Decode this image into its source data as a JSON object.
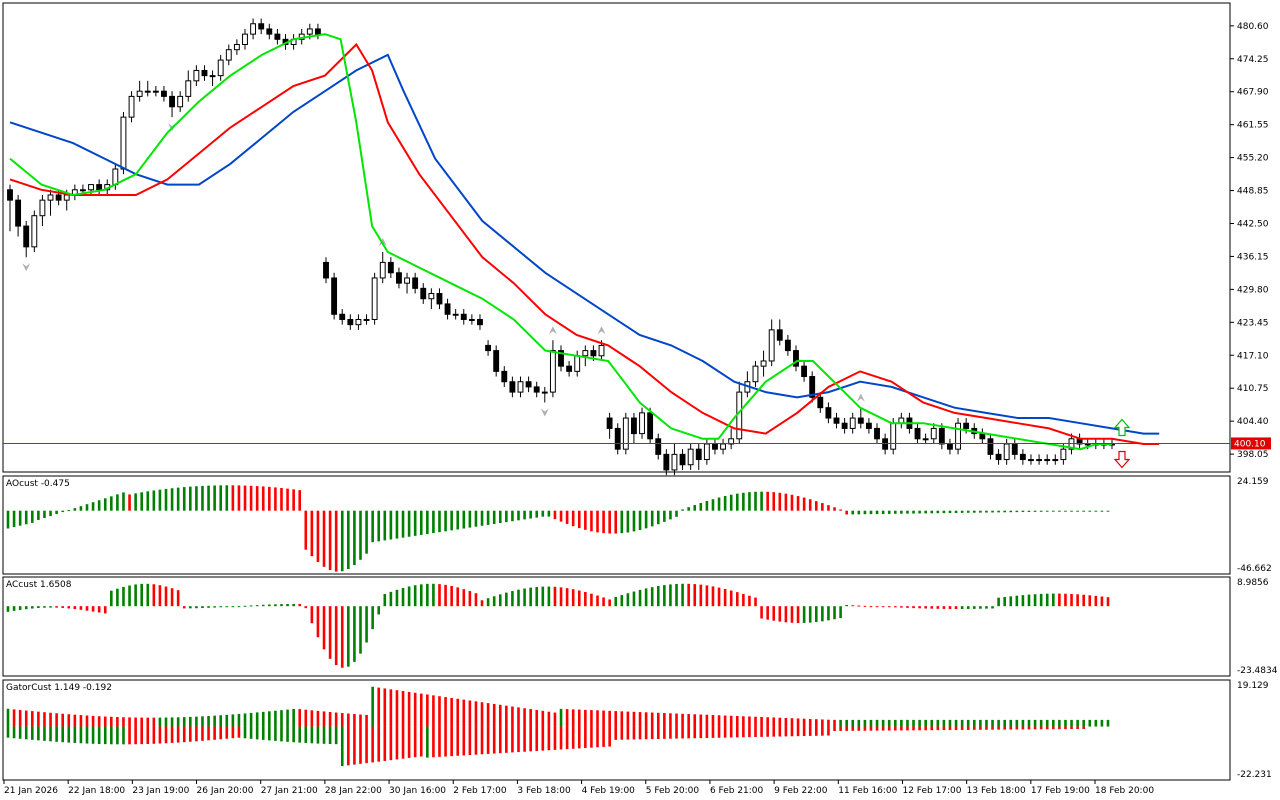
{
  "window": {
    "title": ""
  },
  "colors": {
    "background": "#ffffff",
    "axis": "#000000",
    "candle_up_fill": "#ffffff",
    "candle_down_fill": "#000000",
    "lips": "#00e600",
    "teeth": "#ff0000",
    "jaw": "#0046c8",
    "price_line": "#b22222",
    "price_label_bg": "#e00000",
    "hist_up": "#008000",
    "hist_down": "#ff0000",
    "fractal": "#b0b0b0",
    "arrow_up": "#00c000",
    "arrow_down": "#e00000"
  },
  "time_axis": {
    "labels": [
      "21 Jan 2026",
      "22 Jan 18:00",
      "23 Jan 19:00",
      "26 Jan 20:00",
      "27 Jan 21:00",
      "28 Jan 22:00",
      "30 Jan 16:00",
      "2 Feb 17:00",
      "3 Feb 18:00",
      "4 Feb 19:00",
      "5 Feb 20:00",
      "6 Feb 21:00",
      "9 Feb 22:00",
      "11 Feb 16:00",
      "12 Feb 17:00",
      "13 Feb 18:00",
      "17 Feb 19:00",
      "18 Feb 20:00"
    ]
  },
  "chart_data": [
    {
      "type": "candlestick",
      "title": "",
      "price_axis_ticks": [
        "480.60",
        "474.25",
        "467.90",
        "461.55",
        "455.20",
        "448.85",
        "442.50",
        "436.15",
        "429.80",
        "423.45",
        "417.10",
        "410.75",
        "404.40",
        "398.05"
      ],
      "ylim": [
        394.6,
        485.0
      ],
      "current_price": 400.1,
      "current_price_label": "400.10",
      "candles": [
        [
          449,
          450,
          441,
          447
        ],
        [
          447,
          448,
          440,
          442
        ],
        [
          442,
          443,
          436,
          438
        ],
        [
          438,
          445,
          437,
          444
        ],
        [
          444,
          448,
          442,
          447
        ],
        [
          447,
          449,
          444,
          448
        ],
        [
          448,
          449,
          446,
          447
        ],
        [
          447,
          449,
          445,
          448
        ],
        [
          448,
          450,
          447,
          449
        ],
        [
          449,
          450,
          448,
          449
        ],
        [
          449,
          450,
          448,
          450
        ],
        [
          450,
          451,
          448,
          449
        ],
        [
          449,
          451,
          448,
          450
        ],
        [
          450,
          454,
          449,
          453
        ],
        [
          453,
          464,
          452,
          463
        ],
        [
          463,
          468,
          462,
          467
        ],
        [
          467,
          470,
          466,
          468
        ],
        [
          468,
          470,
          467,
          468
        ],
        [
          468,
          469,
          467,
          468
        ],
        [
          468,
          469,
          466,
          467
        ],
        [
          467,
          468,
          463,
          465
        ],
        [
          465,
          468,
          464,
          467
        ],
        [
          467,
          472,
          466,
          470
        ],
        [
          470,
          473,
          469,
          472
        ],
        [
          472,
          473,
          470,
          471
        ],
        [
          471,
          472,
          469,
          471
        ],
        [
          471,
          475,
          470,
          474
        ],
        [
          474,
          477,
          473,
          476
        ],
        [
          476,
          478,
          475,
          477
        ],
        [
          477,
          480,
          476,
          479
        ],
        [
          479,
          482,
          478,
          481
        ],
        [
          481,
          482,
          479,
          480
        ],
        [
          480,
          481,
          478,
          479
        ],
        [
          479,
          480,
          477,
          478
        ],
        [
          478,
          479,
          476,
          477
        ],
        [
          477,
          479,
          476,
          478
        ],
        [
          478,
          480,
          477,
          479
        ],
        [
          479,
          481,
          478,
          480
        ],
        [
          480,
          481,
          478,
          479
        ],
        [
          435,
          436,
          431,
          432
        ],
        [
          432,
          433,
          424,
          425
        ],
        [
          425,
          426,
          423,
          424
        ],
        [
          424,
          425,
          422,
          423
        ],
        [
          423,
          425,
          422,
          424
        ],
        [
          424,
          425,
          423,
          424
        ],
        [
          424,
          433,
          423,
          432
        ],
        [
          432,
          437,
          431,
          435
        ],
        [
          435,
          436,
          432,
          433
        ],
        [
          433,
          434,
          430,
          431
        ],
        [
          431,
          433,
          429,
          432
        ],
        [
          432,
          433,
          429,
          430
        ],
        [
          430,
          431,
          427,
          428
        ],
        [
          428,
          430,
          426,
          429
        ],
        [
          429,
          430,
          426,
          427
        ],
        [
          427,
          428,
          424,
          425
        ],
        [
          425,
          426,
          424,
          425
        ],
        [
          425,
          426,
          423,
          424
        ],
        [
          424,
          425,
          423,
          424
        ],
        [
          424,
          425,
          422,
          423
        ],
        [
          419,
          420,
          417,
          418
        ],
        [
          418,
          419,
          413,
          414
        ],
        [
          414,
          415,
          411,
          412
        ],
        [
          412,
          413,
          409,
          410
        ],
        [
          410,
          413,
          409,
          412
        ],
        [
          412,
          413,
          410,
          411
        ],
        [
          411,
          412,
          409,
          410
        ],
        [
          410,
          411,
          408,
          410
        ],
        [
          410,
          420,
          409,
          418
        ],
        [
          418,
          419,
          414,
          415
        ],
        [
          415,
          416,
          413,
          414
        ],
        [
          414,
          418,
          413,
          417
        ],
        [
          417,
          419,
          415,
          418
        ],
        [
          418,
          419,
          416,
          417
        ],
        [
          417,
          420,
          416,
          419
        ],
        [
          405,
          406,
          401,
          403
        ],
        [
          403,
          404,
          398,
          399
        ],
        [
          399,
          406,
          398,
          405
        ],
        [
          405,
          406,
          400,
          402
        ],
        [
          402,
          407,
          401,
          406
        ],
        [
          406,
          407,
          400,
          401
        ],
        [
          401,
          402,
          397,
          398
        ],
        [
          398,
          399,
          394,
          395
        ],
        [
          395,
          400,
          394,
          398
        ],
        [
          398,
          399,
          395,
          396
        ],
        [
          396,
          400,
          395,
          399
        ],
        [
          399,
          400,
          395,
          397
        ],
        [
          397,
          401,
          396,
          400
        ],
        [
          400,
          401,
          398,
          399
        ],
        [
          399,
          401,
          398,
          400
        ],
        [
          400,
          403,
          399,
          401
        ],
        [
          401,
          412,
          400,
          410
        ],
        [
          410,
          414,
          409,
          412
        ],
        [
          412,
          416,
          411,
          415
        ],
        [
          415,
          418,
          413,
          416
        ],
        [
          416,
          424,
          415,
          422
        ],
        [
          422,
          424,
          419,
          420
        ],
        [
          420,
          421,
          417,
          418
        ],
        [
          418,
          419,
          414,
          415
        ],
        [
          415,
          416,
          412,
          413
        ],
        [
          413,
          414,
          408,
          409
        ],
        [
          409,
          410,
          406,
          407
        ],
        [
          407,
          408,
          404,
          405
        ],
        [
          405,
          406,
          403,
          404
        ],
        [
          404,
          405,
          402,
          403
        ],
        [
          403,
          406,
          402,
          405
        ],
        [
          405,
          407,
          403,
          404
        ],
        [
          404,
          405,
          402,
          403
        ],
        [
          403,
          404,
          400,
          401
        ],
        [
          401,
          402,
          398,
          399
        ],
        [
          399,
          405,
          398,
          404
        ],
        [
          404,
          406,
          403,
          405
        ],
        [
          405,
          406,
          402,
          403
        ],
        [
          403,
          404,
          400,
          401
        ],
        [
          401,
          402,
          400,
          401
        ],
        [
          401,
          404,
          400,
          403
        ],
        [
          403,
          404,
          399,
          400
        ],
        [
          400,
          401,
          398,
          399
        ],
        [
          399,
          405,
          398,
          404
        ],
        [
          404,
          405,
          402,
          403
        ],
        [
          403,
          404,
          401,
          402
        ],
        [
          402,
          403,
          400,
          401
        ],
        [
          401,
          402,
          397,
          398
        ],
        [
          398,
          399,
          396,
          397
        ],
        [
          397,
          401,
          396,
          400
        ],
        [
          400,
          401,
          397,
          398
        ],
        [
          398,
          399,
          396,
          397
        ],
        [
          397,
          398,
          396,
          397
        ],
        [
          397,
          398,
          396,
          397
        ],
        [
          397,
          398,
          396,
          397
        ],
        [
          397,
          398,
          396,
          397
        ],
        [
          397,
          400,
          396,
          399
        ],
        [
          399,
          402,
          398,
          401
        ],
        [
          401,
          402,
          399,
          400
        ],
        [
          400,
          401,
          399,
          400
        ],
        [
          400,
          401,
          399,
          400
        ],
        [
          400,
          401,
          399,
          400
        ],
        [
          400,
          401,
          399,
          400
        ]
      ],
      "alligator": {
        "lips_name": "Lips",
        "teeth_name": "Teeth",
        "jaw_name": "Jaw",
        "lips": [
          [
            0,
            455
          ],
          [
            10,
            450
          ],
          [
            20,
            448
          ],
          [
            30,
            449
          ],
          [
            40,
            452
          ],
          [
            50,
            460
          ],
          [
            60,
            466
          ],
          [
            70,
            471
          ],
          [
            80,
            475
          ],
          [
            90,
            478
          ],
          [
            100,
            479
          ],
          [
            105,
            478
          ],
          [
            110,
            462
          ],
          [
            115,
            442
          ],
          [
            120,
            437
          ],
          [
            130,
            434
          ],
          [
            140,
            431
          ],
          [
            150,
            428
          ],
          [
            160,
            424
          ],
          [
            170,
            418
          ],
          [
            180,
            417
          ],
          [
            190,
            416
          ],
          [
            195,
            412
          ],
          [
            200,
            408
          ],
          [
            210,
            403
          ],
          [
            220,
            401
          ],
          [
            225,
            401
          ],
          [
            230,
            405
          ],
          [
            240,
            412
          ],
          [
            250,
            416
          ],
          [
            255,
            416
          ],
          [
            260,
            413
          ],
          [
            270,
            407
          ],
          [
            280,
            404
          ],
          [
            290,
            404
          ],
          [
            300,
            403
          ],
          [
            310,
            402
          ],
          [
            320,
            401
          ],
          [
            330,
            400
          ],
          [
            340,
            399
          ],
          [
            345,
            400
          ],
          [
            350,
            400
          ]
        ],
        "teeth": [
          [
            0,
            451
          ],
          [
            10,
            449
          ],
          [
            20,
            448
          ],
          [
            30,
            448
          ],
          [
            40,
            448
          ],
          [
            50,
            451
          ],
          [
            60,
            456
          ],
          [
            70,
            461
          ],
          [
            80,
            465
          ],
          [
            90,
            469
          ],
          [
            100,
            471
          ],
          [
            110,
            477
          ],
          [
            115,
            472
          ],
          [
            120,
            462
          ],
          [
            130,
            452
          ],
          [
            140,
            444
          ],
          [
            150,
            436
          ],
          [
            160,
            431
          ],
          [
            170,
            425
          ],
          [
            180,
            421
          ],
          [
            190,
            419
          ],
          [
            200,
            415
          ],
          [
            210,
            410
          ],
          [
            220,
            406
          ],
          [
            230,
            403
          ],
          [
            240,
            402
          ],
          [
            250,
            406
          ],
          [
            260,
            411
          ],
          [
            270,
            414
          ],
          [
            280,
            412
          ],
          [
            290,
            408
          ],
          [
            300,
            406
          ],
          [
            310,
            405
          ],
          [
            320,
            404
          ],
          [
            330,
            403
          ],
          [
            340,
            401
          ],
          [
            350,
            401
          ],
          [
            360,
            400
          ],
          [
            365,
            400
          ]
        ],
        "jaw": [
          [
            0,
            462
          ],
          [
            10,
            460
          ],
          [
            20,
            458
          ],
          [
            30,
            455
          ],
          [
            40,
            452
          ],
          [
            50,
            450
          ],
          [
            60,
            450
          ],
          [
            70,
            454
          ],
          [
            80,
            459
          ],
          [
            90,
            464
          ],
          [
            100,
            468
          ],
          [
            110,
            472
          ],
          [
            120,
            475
          ],
          [
            125,
            468
          ],
          [
            135,
            455
          ],
          [
            150,
            443
          ],
          [
            170,
            433
          ],
          [
            190,
            425
          ],
          [
            200,
            421
          ],
          [
            210,
            419
          ],
          [
            220,
            416
          ],
          [
            230,
            412
          ],
          [
            240,
            410
          ],
          [
            250,
            409
          ],
          [
            260,
            410
          ],
          [
            270,
            412
          ],
          [
            280,
            411
          ],
          [
            290,
            409
          ],
          [
            300,
            407
          ],
          [
            310,
            406
          ],
          [
            320,
            405
          ],
          [
            330,
            405
          ],
          [
            340,
            404
          ],
          [
            350,
            403
          ],
          [
            360,
            402
          ],
          [
            365,
            402
          ]
        ]
      }
    },
    {
      "type": "bar",
      "title": "AOcust -0.475",
      "max_label": "24.159",
      "min_label": "-46.662",
      "ylim": [
        -46.662,
        24.159
      ]
    },
    {
      "type": "bar",
      "title": "ACcust 1.6508",
      "max_label": "8.9856",
      "min_label": "-23.4834",
      "ylim": [
        -23.4834,
        8.9856
      ]
    },
    {
      "type": "bar",
      "title": "GatorCust 1.149 -0.192",
      "max_label": "19.129",
      "min_label": "-22.231",
      "ylim": [
        -22.231,
        19.129
      ]
    }
  ]
}
